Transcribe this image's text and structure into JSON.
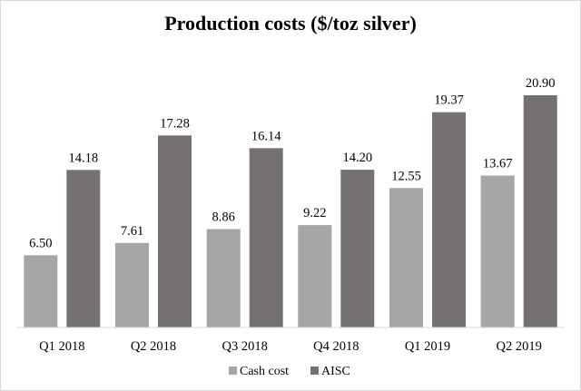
{
  "chart_data": {
    "type": "bar",
    "title": "Production costs ($/toz silver)",
    "categories": [
      "Q1 2018",
      "Q2 2018",
      "Q3 2018",
      "Q4 2018",
      "Q1 2019",
      "Q2 2019"
    ],
    "series": [
      {
        "name": "Cash cost",
        "values": [
          6.5,
          7.61,
          8.86,
          9.22,
          12.55,
          13.67
        ],
        "labels": [
          "6.50",
          "7.61",
          "8.86",
          "9.22",
          "12.55",
          "13.67"
        ],
        "color": "#a6a6a6"
      },
      {
        "name": "AISC",
        "values": [
          14.18,
          17.28,
          16.14,
          14.2,
          19.37,
          20.9
        ],
        "labels": [
          "14.18",
          "17.28",
          "16.14",
          "14.20",
          "19.37",
          "20.90"
        ],
        "color": "#767171"
      }
    ],
    "ylim": [
      0,
      21.5
    ],
    "grid": false,
    "legend": "bottom"
  }
}
